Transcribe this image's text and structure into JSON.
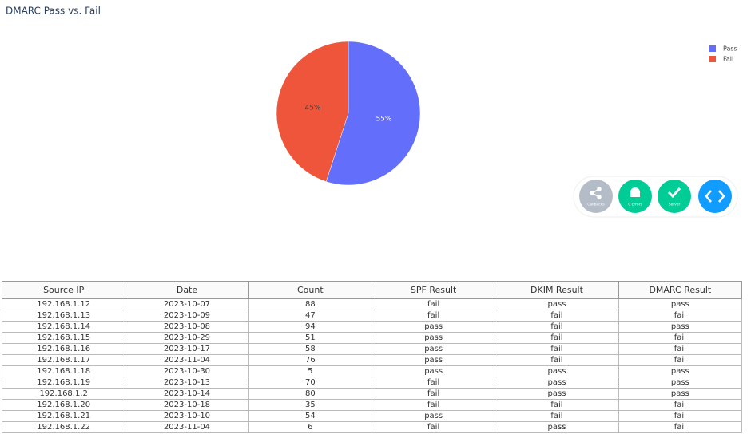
{
  "chart_data": {
    "type": "pie",
    "title": "DMARC Pass vs. Fail",
    "categories": [
      "Pass",
      "Fail"
    ],
    "values": [
      55,
      45
    ],
    "value_labels": [
      "55%",
      "45%"
    ],
    "colors": [
      "#636efa",
      "#ef553b"
    ],
    "legend": "top-right"
  },
  "debug_menu": {
    "buttons": [
      "Callbacks",
      "0 Errors",
      "Server"
    ]
  },
  "table": {
    "columns": [
      "Source IP",
      "Date",
      "Count",
      "SPF Result",
      "DKIM Result",
      "DMARC Result"
    ],
    "rows": [
      [
        "192.168.1.12",
        "2023-10-07",
        88,
        "fail",
        "pass",
        "pass"
      ],
      [
        "192.168.1.13",
        "2023-10-09",
        47,
        "fail",
        "fail",
        "fail"
      ],
      [
        "192.168.1.14",
        "2023-10-08",
        94,
        "pass",
        "fail",
        "pass"
      ],
      [
        "192.168.1.15",
        "2023-10-29",
        51,
        "pass",
        "fail",
        "fail"
      ],
      [
        "192.168.1.16",
        "2023-10-17",
        58,
        "pass",
        "fail",
        "fail"
      ],
      [
        "192.168.1.17",
        "2023-11-04",
        76,
        "pass",
        "fail",
        "fail"
      ],
      [
        "192.168.1.18",
        "2023-10-30",
        5,
        "pass",
        "pass",
        "pass"
      ],
      [
        "192.168.1.19",
        "2023-10-13",
        70,
        "fail",
        "pass",
        "pass"
      ],
      [
        "192.168.1.2",
        "2023-10-14",
        80,
        "fail",
        "pass",
        "pass"
      ],
      [
        "192.168.1.20",
        "2023-10-18",
        35,
        "fail",
        "fail",
        "fail"
      ],
      [
        "192.168.1.21",
        "2023-10-10",
        54,
        "pass",
        "fail",
        "fail"
      ],
      [
        "192.168.1.22",
        "2023-11-04",
        6,
        "fail",
        "pass",
        "fail"
      ]
    ]
  }
}
